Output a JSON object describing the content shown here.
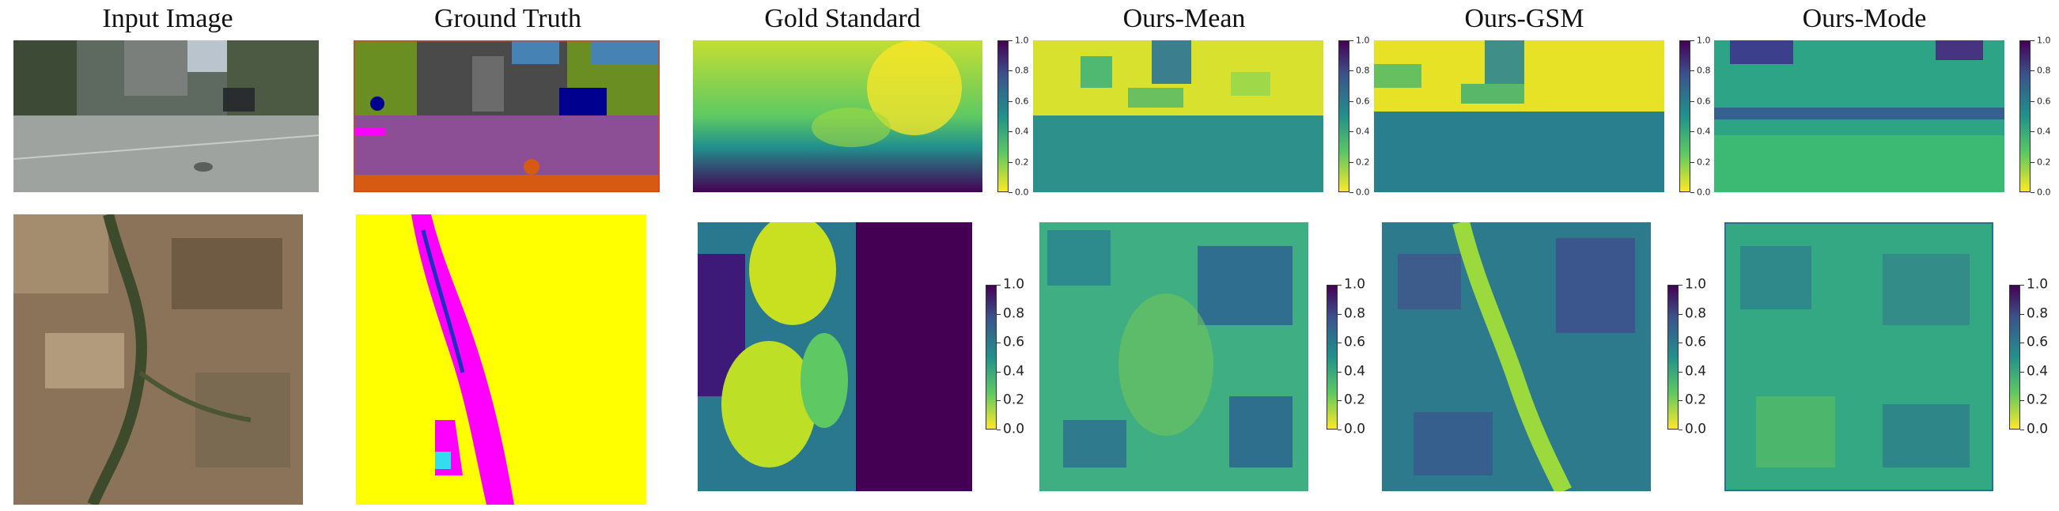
{
  "columns": {
    "input": "Input Image",
    "ground_truth": "Ground Truth",
    "gold": "Gold Standard",
    "mean": "Ours-Mean",
    "gsm": "Ours-GSM",
    "mode": "Ours-Mode"
  },
  "colorbar": {
    "colormap": "viridis (reversed: yellow at 0.0, purple at 1.0)",
    "ticks": [
      "1.0",
      "0.8",
      "0.6",
      "0.4",
      "0.2",
      "0.0"
    ]
  },
  "rows": [
    {
      "dataset": "street scene"
    },
    {
      "dataset": "aerial landscape"
    }
  ],
  "palette": {
    "viridis_dark": "#440154",
    "viridis_blue": "#3b528b",
    "viridis_teal": "#21918c",
    "viridis_green": "#5ec962",
    "viridis_yellow": "#fde725",
    "gt_purple": "#8c4f96",
    "gt_orange": "#d65a12",
    "gt_magenta": "#ff00ff",
    "gt_yellow": "#ffff00"
  }
}
